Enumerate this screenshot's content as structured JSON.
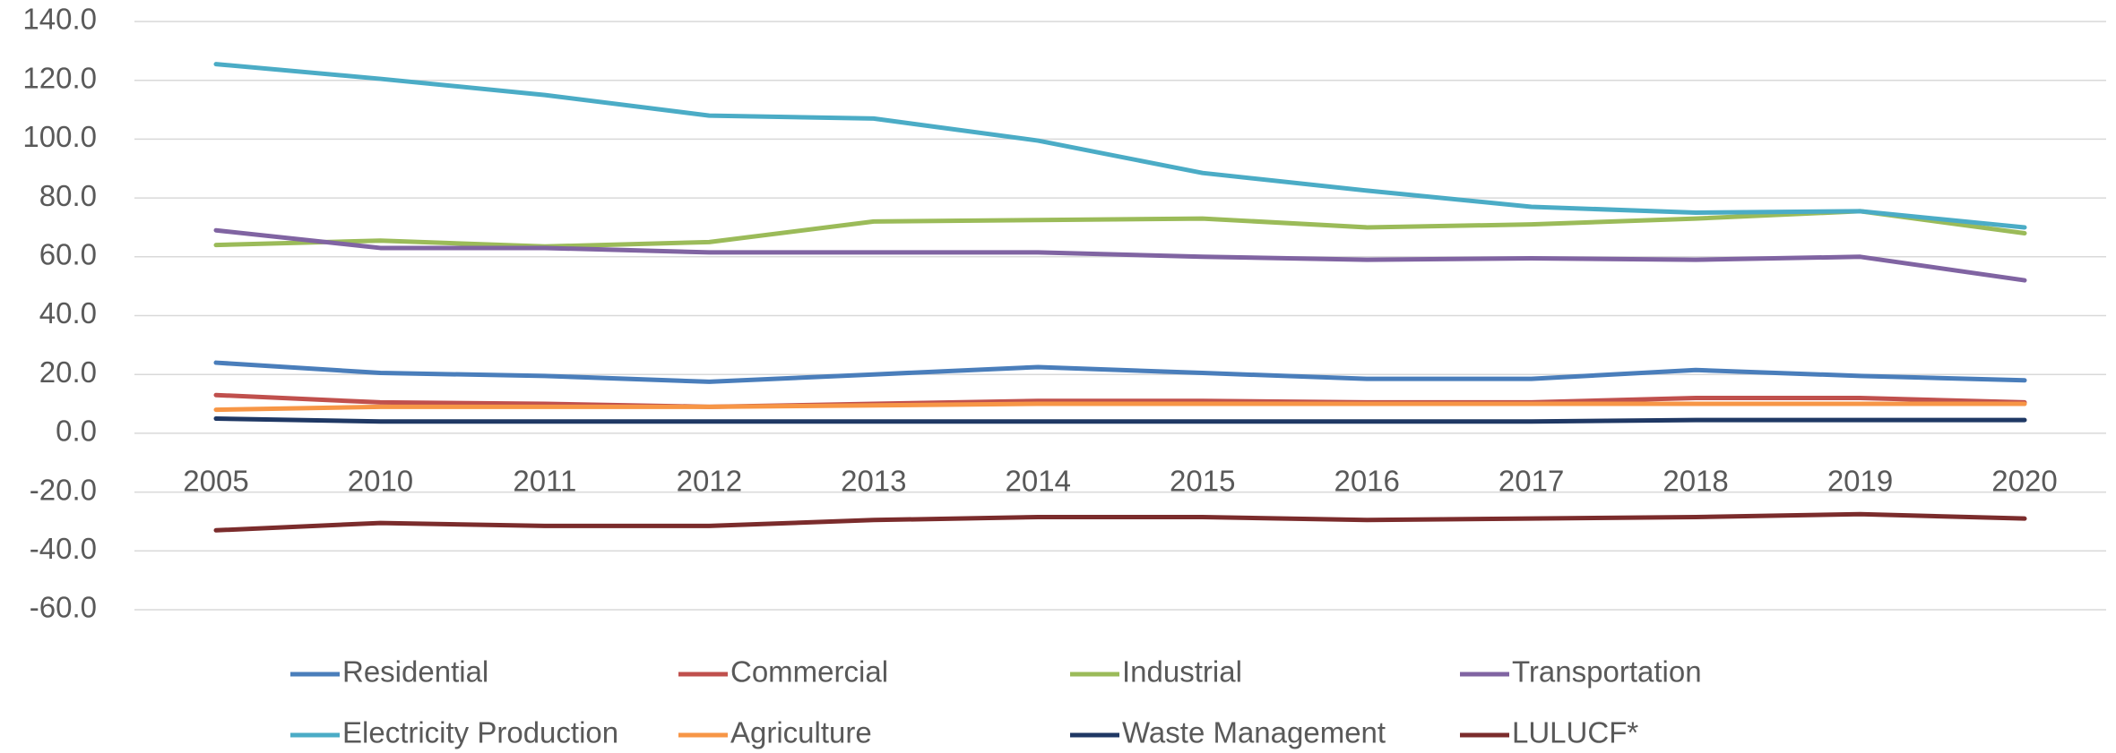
{
  "chart_data": {
    "type": "line",
    "categories": [
      "2005",
      "2010",
      "2011",
      "2012",
      "2013",
      "2014",
      "2015",
      "2016",
      "2017",
      "2018",
      "2019",
      "2020"
    ],
    "series": [
      {
        "name": "Residential",
        "color": "#4a7ebb",
        "values": [
          24,
          20.5,
          19.5,
          17.5,
          20,
          22.5,
          20.5,
          18.5,
          18.5,
          21.5,
          19.5,
          18
        ]
      },
      {
        "name": "Commercial",
        "color": "#c0504d",
        "values": [
          13,
          10.5,
          10,
          9,
          10,
          11,
          11,
          10.5,
          10.5,
          12,
          12,
          10.5
        ]
      },
      {
        "name": "Industrial",
        "color": "#9bbb59",
        "values": [
          64,
          65.5,
          63.5,
          65,
          72,
          72.5,
          73,
          70,
          71,
          73,
          75.5,
          68
        ]
      },
      {
        "name": "Transportation",
        "color": "#8064a2",
        "values": [
          69,
          63,
          63,
          61.5,
          61.5,
          61.5,
          60,
          59,
          59.5,
          59,
          60,
          52
        ]
      },
      {
        "name": "Electricity Production",
        "color": "#4bacc6",
        "values": [
          125.5,
          120.5,
          115,
          108,
          107,
          99.5,
          88.5,
          82.5,
          77,
          75,
          75.5,
          70
        ]
      },
      {
        "name": "Agriculture",
        "color": "#f79646",
        "values": [
          8,
          9,
          9,
          9,
          9.5,
          10,
          10,
          10,
          10,
          10,
          10,
          10
        ]
      },
      {
        "name": "Waste Management",
        "color": "#1f3864",
        "values": [
          5,
          4,
          4,
          4,
          4,
          4,
          4,
          4,
          4,
          4.5,
          4.5,
          4.5
        ]
      },
      {
        "name": "LULUCF*",
        "color": "#7b2c2c",
        "values": [
          -33,
          -30.5,
          -31.5,
          -31.5,
          -29.5,
          -28.5,
          -28.5,
          -29.5,
          -29,
          -28.5,
          -27.5,
          -29
        ]
      }
    ],
    "ylim": [
      -60,
      140
    ],
    "yticks": [
      {
        "value": -60,
        "label": "-60.0"
      },
      {
        "value": -40,
        "label": "-40.0"
      },
      {
        "value": -20,
        "label": "-20.0"
      },
      {
        "value": 0,
        "label": "0.0"
      },
      {
        "value": 20,
        "label": "20.0"
      },
      {
        "value": 40,
        "label": "40.0"
      },
      {
        "value": 60,
        "label": "60.0"
      },
      {
        "value": 80,
        "label": "80.0"
      },
      {
        "value": 100,
        "label": "100.0"
      },
      {
        "value": 120,
        "label": "120.0"
      },
      {
        "value": 140,
        "label": "140.0"
      }
    ],
    "grid": true
  }
}
